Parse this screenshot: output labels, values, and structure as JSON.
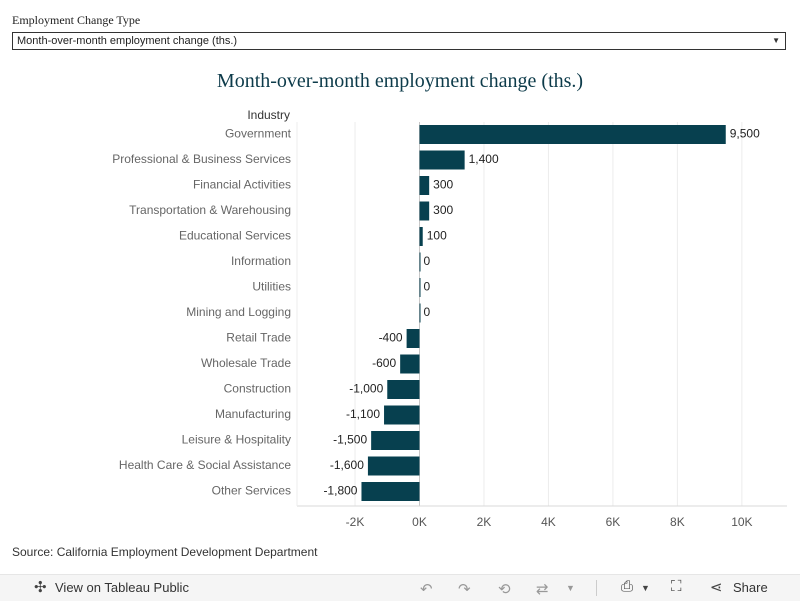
{
  "filter": {
    "label": "Employment Change Type",
    "selected": "Month-over-month employment change (ths.)"
  },
  "chart_data": {
    "type": "bar",
    "orientation": "horizontal",
    "title": "Month-over-month employment change (ths.)",
    "category_axis_label": "Industry",
    "categories": [
      "Government",
      "Professional & Business Services",
      "Financial Activities",
      "Transportation & Warehousing",
      "Educational Services",
      "Information",
      "Utilities",
      "Mining and Logging",
      "Retail Trade",
      "Wholesale Trade",
      "Construction",
      "Manufacturing",
      "Leisure & Hospitality",
      "Health Care & Social Assistance",
      "Other Services"
    ],
    "values": [
      9500,
      1400,
      300,
      300,
      100,
      0,
      0,
      0,
      -400,
      -600,
      -1000,
      -1100,
      -1500,
      -1600,
      -1800
    ],
    "value_labels": [
      "9,500",
      "1,400",
      "300",
      "300",
      "100",
      "0",
      "0",
      "0",
      "-400",
      "-600",
      "-1,000",
      "-1,100",
      "-1,500",
      "-1,600",
      "-1,800"
    ],
    "xlim": [
      -3800,
      11400
    ],
    "x_ticks": [
      -2000,
      0,
      2000,
      4000,
      6000,
      8000,
      10000
    ],
    "x_tick_labels": [
      "-2K",
      "0K",
      "2K",
      "4K",
      "6K",
      "8K",
      "10K"
    ],
    "grid": true,
    "bar_color": "#07404f"
  },
  "source": "Source: California Employment Development Department",
  "toolbar": {
    "view_label": "View on Tableau Public",
    "share_label": "Share"
  }
}
